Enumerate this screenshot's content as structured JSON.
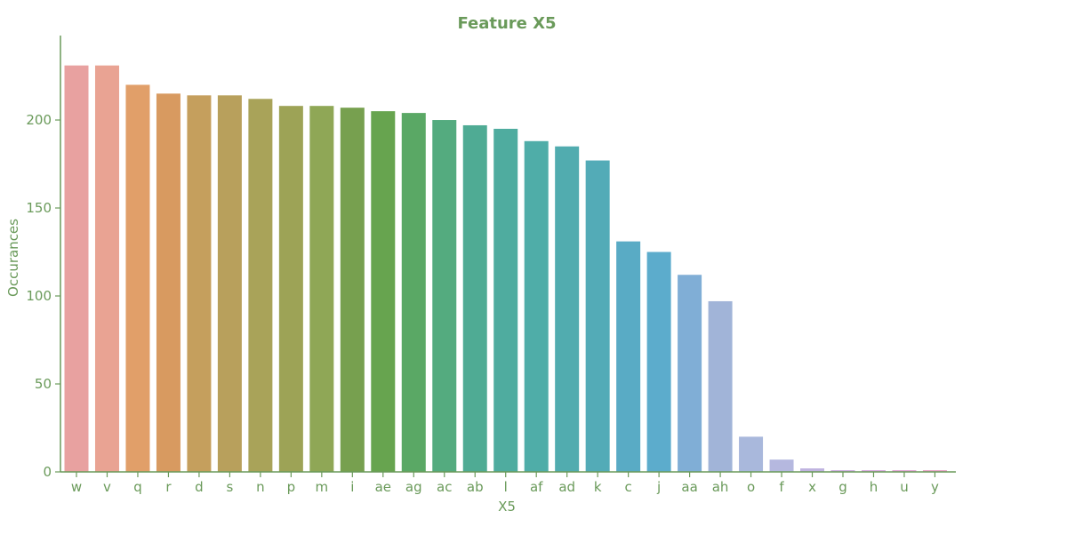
{
  "colors": {
    "text": "#6a9a5a",
    "axis": "#6a9a5a",
    "bars": [
      "#e8a1a0",
      "#e9a393",
      "#e19f69",
      "#d89a60",
      "#c59f5d",
      "#b8a05c",
      "#a9a359",
      "#9da356",
      "#8fa756",
      "#77a04f",
      "#67a44f",
      "#5aa865",
      "#54ab7f",
      "#4fab94",
      "#4fac9f",
      "#4fada8",
      "#51acaf",
      "#53abb7",
      "#59abc5",
      "#5caccc",
      "#80aed6",
      "#a1b4d8",
      "#a9b8dc",
      "#b5b8df",
      "#c0b3e0",
      "#cdaee0",
      "#d8a9de",
      "#e2a4d6",
      "#e8a2c8",
      "#e8a2b8"
    ]
  },
  "chart_data": {
    "type": "bar",
    "title": "Feature X5",
    "xlabel": "X5",
    "ylabel": "Occurances",
    "categories": [
      "w",
      "v",
      "q",
      "r",
      "d",
      "s",
      "n",
      "p",
      "m",
      "i",
      "ae",
      "ag",
      "ac",
      "ab",
      "l",
      "af",
      "ad",
      "k",
      "c",
      "j",
      "aa",
      "ah",
      "o",
      "f",
      "x",
      "g",
      "h",
      "u",
      "y"
    ],
    "values": [
      231,
      231,
      220,
      215,
      214,
      214,
      212,
      208,
      208,
      207,
      205,
      204,
      200,
      197,
      195,
      188,
      185,
      177,
      131,
      125,
      112,
      97,
      20,
      7,
      2,
      1,
      1,
      1,
      1
    ],
    "ylim": [
      0,
      248
    ],
    "yticks": [
      0,
      50,
      100,
      150,
      200
    ],
    "grid": false,
    "legend": "none"
  }
}
